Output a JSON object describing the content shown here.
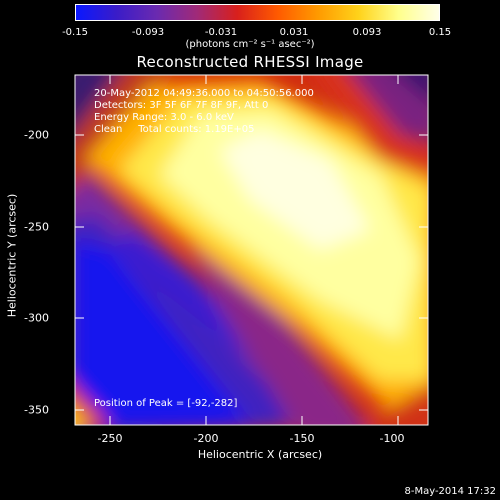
{
  "colorbar": {
    "ticks": [
      "-0.15",
      "-0.093",
      "-0.031",
      "0.031",
      "0.093",
      "0.15"
    ],
    "units": "(photons cm⁻² s⁻¹ asec⁻²)",
    "colors": [
      "#0a18ff",
      "#3a1cc8",
      "#6a2ab0",
      "#a02a78",
      "#d8201c",
      "#ff5a00",
      "#ff9a00",
      "#ffd21a",
      "#ffff8c",
      "#ffffe8"
    ]
  },
  "title": "Reconstructed RHESSI Image",
  "annotations": {
    "time_range": "20-May-2012 04:49:36.000 to 04:50:56.000",
    "detectors": "Detectors: 3F 5F 6F 7F 8F 9F, Att 0",
    "energy": "Energy Range: 3.0 - 6.0 keV",
    "method": "Clean     Total counts: 1.19E+05",
    "peak": "Position of Peak = [-92,-282]"
  },
  "axes": {
    "xlabel": "Heliocentric X (arcsec)",
    "ylabel": "Heliocentric Y (arcsec)",
    "xticks": [
      "-250",
      "-200",
      "-150",
      "-100"
    ],
    "yticks": [
      "-200",
      "-250",
      "-300",
      "-350"
    ]
  },
  "timestamp": "8-May-2014 17:32"
}
